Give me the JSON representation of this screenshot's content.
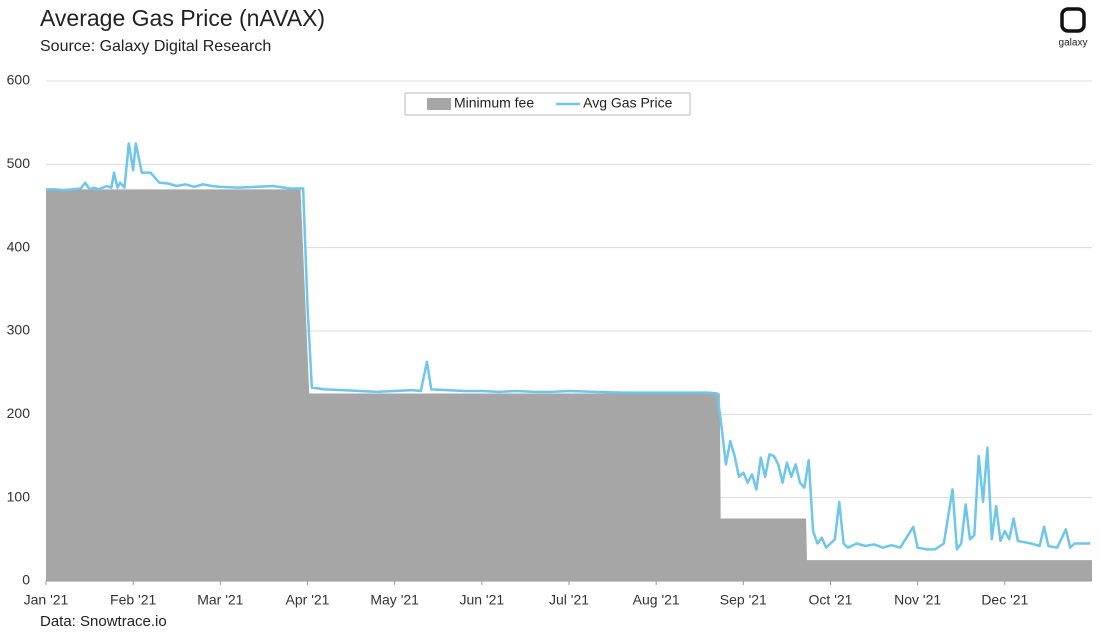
{
  "chart_data": {
    "type": "area-line",
    "title": "Average Gas Price (nAVAX)",
    "subtitle": "Source: Galaxy Digital Research",
    "footnote": "Data: Snowtrace.io",
    "brand": "galaxy",
    "xlim": [
      0,
      12
    ],
    "xticks": [
      {
        "value": 0,
        "label": "Jan '21"
      },
      {
        "value": 1,
        "label": "Feb '21"
      },
      {
        "value": 2,
        "label": "Mar '21"
      },
      {
        "value": 3,
        "label": "Apr '21"
      },
      {
        "value": 4,
        "label": "May '21"
      },
      {
        "value": 5,
        "label": "Jun '21"
      },
      {
        "value": 6,
        "label": "Jul '21"
      },
      {
        "value": 7,
        "label": "Aug '21"
      },
      {
        "value": 8,
        "label": "Sep '21"
      },
      {
        "value": 9,
        "label": "Oct '21"
      },
      {
        "value": 10,
        "label": "Nov '21"
      },
      {
        "value": 11,
        "label": "Dec '21"
      }
    ],
    "ylim": [
      0,
      600
    ],
    "yticks": [
      0,
      100,
      200,
      300,
      400,
      500,
      600
    ],
    "grid": true,
    "legend": "top",
    "series": [
      {
        "name": "Minimum fee",
        "kind": "area",
        "color": "#a6a6a6",
        "x": [
          0,
          2.92,
          3.02,
          7.73,
          7.74,
          8.72,
          8.73,
          12
        ],
        "values": [
          470,
          470,
          225,
          225,
          75,
          75,
          25,
          25
        ]
      },
      {
        "name": "Avg Gas Price",
        "kind": "line",
        "color": "#6ec6ea",
        "x": [
          0,
          0.1,
          0.2,
          0.3,
          0.4,
          0.45,
          0.5,
          0.55,
          0.6,
          0.7,
          0.75,
          0.78,
          0.82,
          0.85,
          0.9,
          0.95,
          1.0,
          1.03,
          1.07,
          1.1,
          1.2,
          1.3,
          1.4,
          1.5,
          1.6,
          1.7,
          1.8,
          1.9,
          2.0,
          2.2,
          2.4,
          2.6,
          2.8,
          2.95,
          3.0,
          3.05,
          3.2,
          3.4,
          3.6,
          3.8,
          4.0,
          4.2,
          4.3,
          4.37,
          4.42,
          4.6,
          4.8,
          5.0,
          5.2,
          5.4,
          5.6,
          5.8,
          6.0,
          6.3,
          6.6,
          7.0,
          7.3,
          7.6,
          7.7,
          7.75,
          7.8,
          7.85,
          7.9,
          7.95,
          8.0,
          8.05,
          8.1,
          8.15,
          8.2,
          8.25,
          8.3,
          8.35,
          8.4,
          8.45,
          8.5,
          8.55,
          8.6,
          8.65,
          8.7,
          8.75,
          8.8,
          8.85,
          8.9,
          8.95,
          9.0,
          9.05,
          9.1,
          9.15,
          9.2,
          9.3,
          9.4,
          9.5,
          9.6,
          9.7,
          9.8,
          9.95,
          10.0,
          10.1,
          10.2,
          10.3,
          10.4,
          10.45,
          10.5,
          10.55,
          10.6,
          10.65,
          10.7,
          10.75,
          10.8,
          10.85,
          10.9,
          10.95,
          11.0,
          11.05,
          11.1,
          11.15,
          11.2,
          11.3,
          11.4,
          11.45,
          11.5,
          11.6,
          11.7,
          11.75,
          11.8,
          11.9,
          11.98
        ],
        "values": [
          470,
          470,
          469,
          470,
          471,
          478,
          470,
          472,
          470,
          474,
          472,
          490,
          472,
          478,
          472,
          525,
          493,
          525,
          505,
          490,
          490,
          478,
          477,
          474,
          476,
          473,
          476,
          474,
          473,
          472,
          473,
          474,
          471,
          471,
          330,
          232,
          230,
          229,
          228,
          227,
          228,
          229,
          228,
          263,
          230,
          229,
          228,
          228,
          227,
          228,
          227,
          227,
          228,
          227,
          226,
          226,
          226,
          226,
          225,
          185,
          140,
          168,
          150,
          125,
          130,
          118,
          128,
          110,
          148,
          125,
          152,
          150,
          140,
          118,
          142,
          125,
          140,
          118,
          112,
          145,
          60,
          45,
          52,
          40,
          45,
          50,
          95,
          45,
          40,
          45,
          42,
          44,
          40,
          43,
          40,
          65,
          40,
          38,
          38,
          45,
          110,
          38,
          45,
          92,
          50,
          55,
          150,
          95,
          160,
          50,
          90,
          48,
          60,
          50,
          75,
          48,
          47,
          45,
          42,
          65,
          42,
          40,
          62,
          40,
          45,
          45,
          45
        ]
      }
    ]
  }
}
